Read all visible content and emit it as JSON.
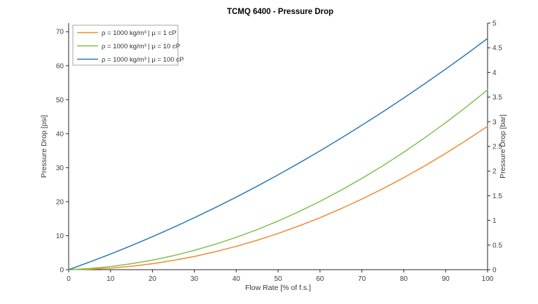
{
  "title": "TCMQ 6400 - Pressure Drop",
  "chart_data": {
    "type": "line",
    "title": "TCMQ 6400 - Pressure Drop",
    "xlabel": "Flow Rate [% of f.s.]",
    "ylabel_left": "Pressure Drop [psi]",
    "ylabel_right": "Pressure Drop [bar]",
    "xlim": [
      0,
      100
    ],
    "ylim_left_psi": [
      0,
      72.52
    ],
    "ylim_right_bar": [
      0,
      5
    ],
    "psi_per_bar": 14.5038,
    "grid": false,
    "box": false,
    "tick_direction": "out",
    "legend_position": "top-left",
    "x_ticks": [
      0,
      10,
      20,
      30,
      40,
      50,
      60,
      70,
      80,
      90,
      100
    ],
    "y_ticks_left_psi": [
      0,
      10,
      20,
      30,
      40,
      50,
      60,
      70
    ],
    "y_ticks_right_bar": [
      0,
      0.5,
      1,
      1.5,
      2,
      2.5,
      3,
      3.5,
      4,
      4.5,
      5
    ],
    "x": [
      0,
      5,
      10,
      15,
      20,
      25,
      30,
      35,
      40,
      45,
      50,
      55,
      60,
      65,
      70,
      75,
      80,
      85,
      90,
      95,
      100
    ],
    "series": [
      {
        "name": "ρ = 1000 kg/m³ | μ = 1 cP",
        "color": "#F28A33",
        "values_psi": [
          0,
          0.13,
          0.46,
          1.01,
          1.76,
          2.72,
          3.89,
          5.27,
          6.86,
          8.65,
          10.66,
          12.87,
          15.29,
          17.93,
          20.77,
          23.82,
          27.08,
          30.54,
          34.22,
          38.1,
          42.2
        ]
      },
      {
        "name": "ρ = 1000 kg/m³ | μ = 10 cP",
        "color": "#7DC24B",
        "values_psi": [
          0,
          0.34,
          0.92,
          1.75,
          2.81,
          4.12,
          5.68,
          7.47,
          9.51,
          11.79,
          14.32,
          17.08,
          20.09,
          23.34,
          26.84,
          30.57,
          34.55,
          38.78,
          43.24,
          47.95,
          52.9
        ]
      },
      {
        "name": "ρ = 1000 kg/m³ | μ = 100 cP",
        "color": "#2779B5",
        "values_psi": [
          0,
          2.24,
          4.6,
          7.09,
          9.7,
          12.43,
          15.28,
          18.25,
          21.34,
          24.56,
          27.9,
          31.36,
          34.94,
          38.65,
          42.48,
          46.43,
          50.5,
          54.69,
          59.0,
          63.44,
          68.0
        ]
      }
    ]
  },
  "colors": {
    "background": "#FFFFFF",
    "axis_line": "#262626",
    "tick_label": "#404040",
    "legend_border": "#A6A6A6",
    "legend_background": "#FFFFFF"
  }
}
